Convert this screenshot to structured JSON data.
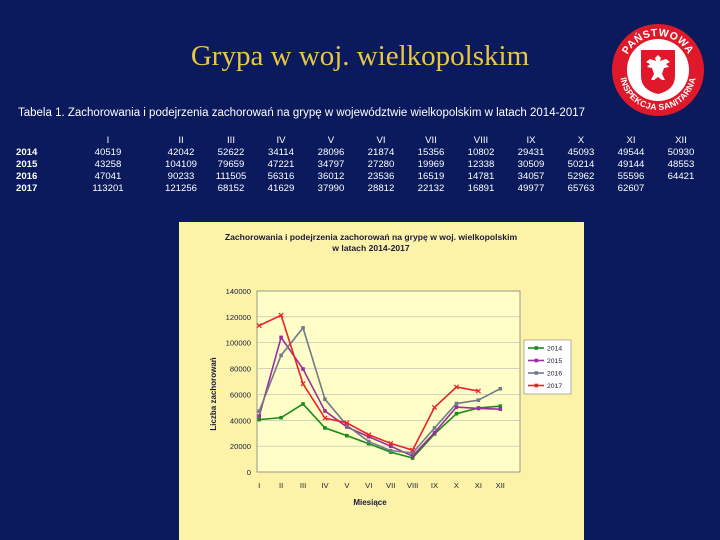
{
  "slide": {
    "title": "Grypa w woj. wielkopolskim"
  },
  "logo": {
    "text_top": "PAŃSTWOWA",
    "text_bottom": "INSPEKCJA SANITARNA",
    "colors": {
      "ring": "#e0192a",
      "shield": "#e0192a",
      "eagle": "#ffffff",
      "inner": "#ffffff"
    }
  },
  "table": {
    "caption": "Tabela 1.  Zachorowania i podejrzenia zachorowań na grypę w województwie wielkopolskim w latach 2014-2017",
    "months": [
      "I",
      "II",
      "III",
      "IV",
      "V",
      "VI",
      "VII",
      "VIII",
      "IX",
      "X",
      "XI",
      "XII"
    ],
    "rows": [
      {
        "year": "2014",
        "values": [
          "40519",
          "42042",
          "52622",
          "34114",
          "28096",
          "21874",
          "15356",
          "10802",
          "29431",
          "45093",
          "49544",
          "50930"
        ]
      },
      {
        "year": "2015",
        "values": [
          "43258",
          "104109",
          "79659",
          "47221",
          "34797",
          "27280",
          "19969",
          "12338",
          "30509",
          "50214",
          "49144",
          "48553"
        ]
      },
      {
        "year": "2016",
        "values": [
          "47041",
          "90233",
          "111505",
          "56316",
          "36012",
          "23536",
          "16519",
          "14781",
          "34057",
          "52962",
          "55596",
          "64421"
        ]
      },
      {
        "year": "2017",
        "values": [
          "113201",
          "121256",
          "68152",
          "41629",
          "37990",
          "28812",
          "22132",
          "16891",
          "49977",
          "65763",
          "62607",
          ""
        ]
      }
    ]
  },
  "chart_data": {
    "type": "line",
    "title": "Zachorowania   i podejrzenia zachorowań na grypę w woj. wielkopolskim",
    "subtitle": "w latach 2014-2017",
    "xlabel": "Miesiące",
    "ylabel": "Liczba zachorowań",
    "categories": [
      "I",
      "II",
      "III",
      "IV",
      "V",
      "VI",
      "VII",
      "VIII",
      "IX",
      "X",
      "XI",
      "XII"
    ],
    "ylim": [
      0,
      140000
    ],
    "yticks": [
      "0",
      "20000",
      "40000",
      "60000",
      "80000",
      "100000",
      "120000",
      "140000"
    ],
    "grid": true,
    "legend_position": "right",
    "series": [
      {
        "name": "2014",
        "color": "#1a8a1a",
        "values": [
          40519,
          42042,
          52622,
          34114,
          28096,
          21874,
          15356,
          10802,
          29431,
          45093,
          49544,
          50930
        ]
      },
      {
        "name": "2015",
        "color": "#9a2fa0",
        "values": [
          43258,
          104109,
          79659,
          47221,
          34797,
          27280,
          19969,
          12338,
          30509,
          50214,
          49144,
          48553
        ]
      },
      {
        "name": "2016",
        "color": "#707a8a",
        "values": [
          47041,
          90233,
          111505,
          56316,
          36012,
          23536,
          16519,
          14781,
          34057,
          52962,
          55596,
          64421
        ]
      },
      {
        "name": "2017",
        "color": "#e8242a",
        "values": [
          113201,
          121256,
          68152,
          41629,
          37990,
          28812,
          22132,
          16891,
          49977,
          65763,
          62607,
          null
        ]
      }
    ]
  }
}
